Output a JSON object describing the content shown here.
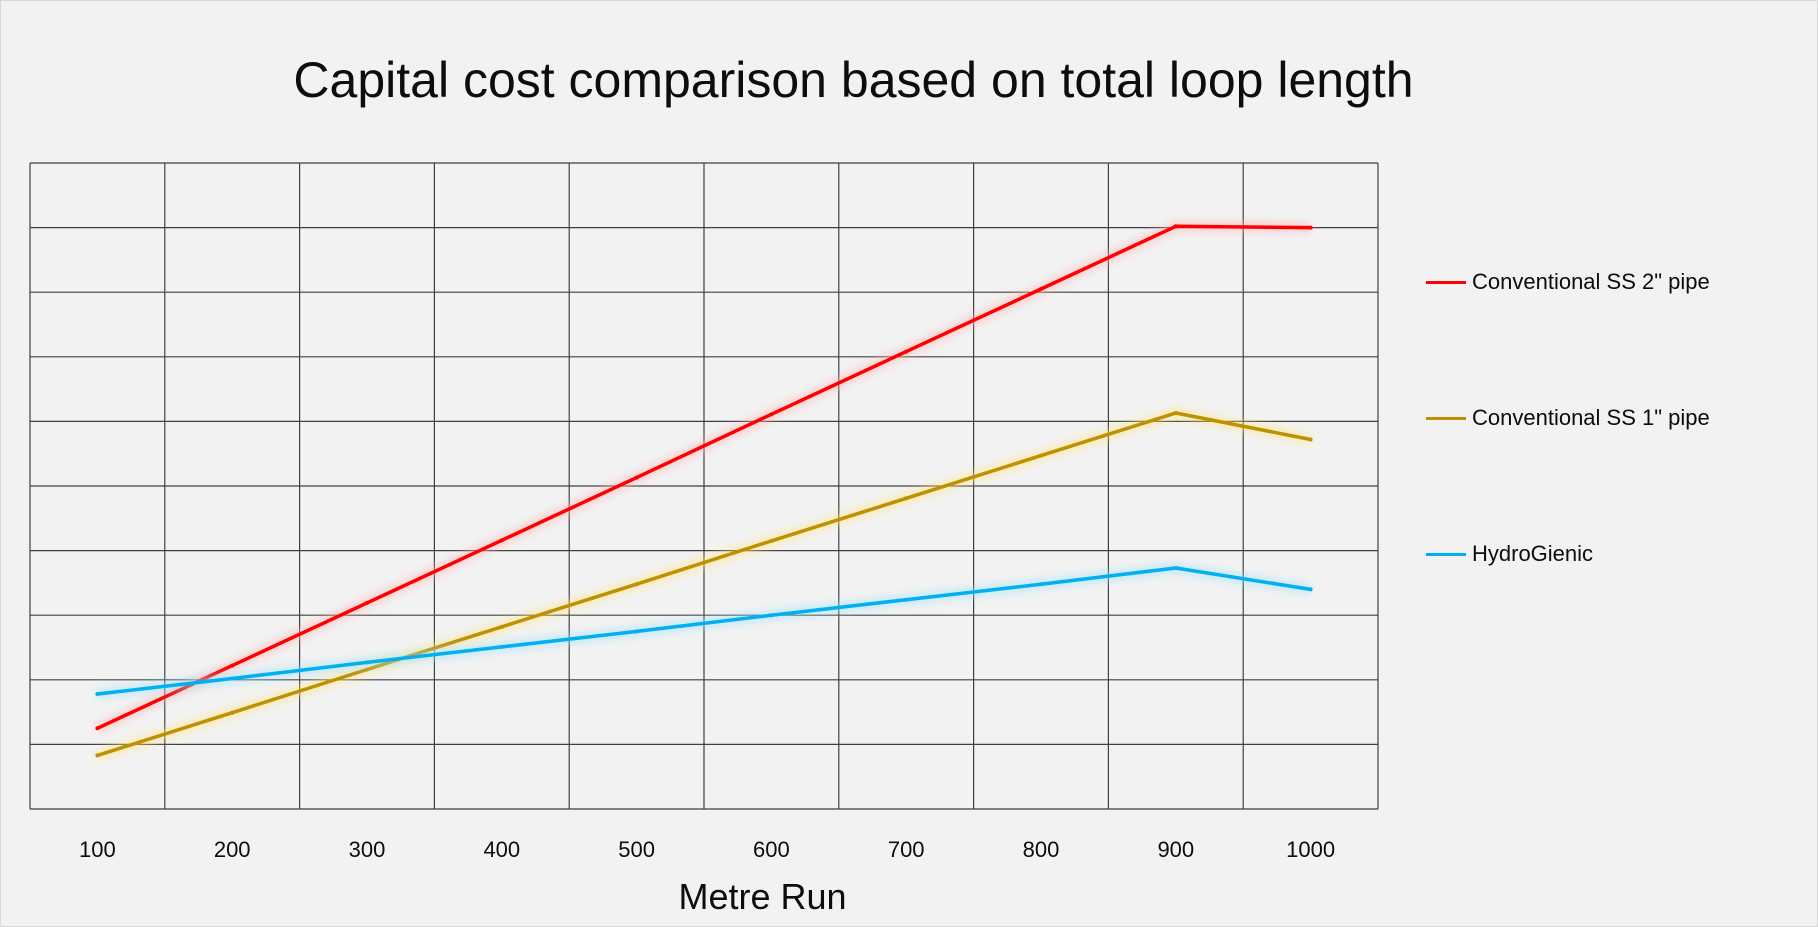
{
  "chart_data": {
    "type": "line",
    "title": "Capital cost comparison based on total loop length",
    "xlabel": "Metre Run",
    "ylabel": "",
    "x": [
      100,
      200,
      300,
      400,
      500,
      600,
      700,
      800,
      900,
      1000
    ],
    "xlim": [
      50,
      1050
    ],
    "ylim": [
      0,
      10
    ],
    "y_tick_labels_shown": false,
    "grid": true,
    "legend_position": "right",
    "series": [
      {
        "name": "Conventional SS 2\" pipe",
        "color": "#ff0000",
        "glow": "#ffb3b3",
        "values": [
          1.25,
          2.22,
          3.19,
          4.16,
          5.13,
          6.11,
          7.08,
          8.05,
          9.02,
          9.0
        ]
      },
      {
        "name": "Conventional SS 1\" pipe",
        "color": "#bf9000",
        "glow": "#ffe680",
        "values": [
          0.83,
          1.49,
          2.16,
          2.82,
          3.48,
          4.15,
          4.81,
          5.47,
          6.13,
          5.72
        ]
      },
      {
        "name": "HydroGienic",
        "color": "#00b0f0",
        "glow": "#9fe1f8",
        "values": [
          1.78,
          2.02,
          2.27,
          2.51,
          2.75,
          3.0,
          3.24,
          3.48,
          3.73,
          3.4
        ]
      }
    ]
  }
}
